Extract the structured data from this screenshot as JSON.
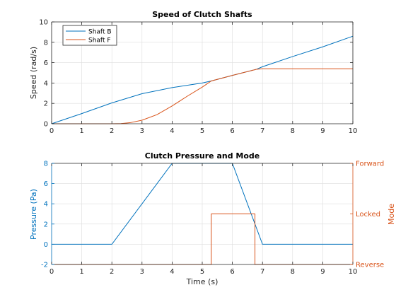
{
  "colors": {
    "background": "#ffffff",
    "axes": "#262626",
    "grid": "#dddddd",
    "series_blue": "#0072bd",
    "series_orange": "#d95319"
  },
  "chart_data": [
    {
      "type": "line",
      "title": "Speed of Clutch Shafts",
      "xlabel": "",
      "ylabel": "Speed (rad/s)",
      "xlim": [
        0,
        10
      ],
      "ylim": [
        0,
        10
      ],
      "xticks": [
        0,
        1,
        2,
        3,
        4,
        5,
        6,
        7,
        8,
        9,
        10
      ],
      "yticks": [
        0,
        2,
        4,
        6,
        8,
        10
      ],
      "grid": true,
      "legend": "top-left",
      "series": [
        {
          "name": "Shaft B",
          "color": "#0072bd",
          "x": [
            0,
            1,
            2,
            3,
            4,
            5,
            5.3,
            6,
            6.8,
            7,
            8,
            9,
            10
          ],
          "y": [
            0,
            1.0,
            2.05,
            2.95,
            3.55,
            4.0,
            4.2,
            4.75,
            5.35,
            5.6,
            6.6,
            7.55,
            8.6
          ]
        },
        {
          "name": "Shaft F",
          "color": "#d95319",
          "x": [
            0,
            2,
            2.3,
            2.6,
            3,
            3.5,
            4,
            4.5,
            5,
            5.3,
            6,
            6.8,
            7,
            8,
            9,
            10
          ],
          "y": [
            0,
            0,
            0.02,
            0.1,
            0.35,
            0.9,
            1.75,
            2.7,
            3.6,
            4.2,
            4.75,
            5.35,
            5.4,
            5.4,
            5.4,
            5.4
          ]
        }
      ]
    },
    {
      "type": "line",
      "title": "Clutch Pressure and Mode",
      "xlabel": "Time (s)",
      "ylabel": "Pressure (Pa)",
      "ylabel_right": "Mode",
      "xlim": [
        0,
        10
      ],
      "ylim": [
        -2,
        8
      ],
      "ylim_right": [
        0,
        2
      ],
      "xticks": [
        0,
        1,
        2,
        3,
        4,
        5,
        6,
        7,
        8,
        9,
        10
      ],
      "yticks": [
        -2,
        0,
        2,
        4,
        6,
        8
      ],
      "yticks_right": [
        {
          "value": 0,
          "label": "Reverse"
        },
        {
          "value": 1,
          "label": "Locked"
        },
        {
          "value": 2,
          "label": "Forward"
        }
      ],
      "grid": true,
      "series": [
        {
          "axis": "left",
          "color": "#0072bd",
          "x": [
            0,
            2,
            4,
            6,
            7,
            10
          ],
          "y": [
            0,
            0,
            8,
            8,
            0,
            0
          ]
        },
        {
          "axis": "right",
          "color": "#d95319",
          "x": [
            0,
            5.3,
            5.3,
            6.75,
            6.75,
            10
          ],
          "y": [
            0,
            0,
            1,
            1,
            0,
            0
          ]
        }
      ]
    }
  ]
}
